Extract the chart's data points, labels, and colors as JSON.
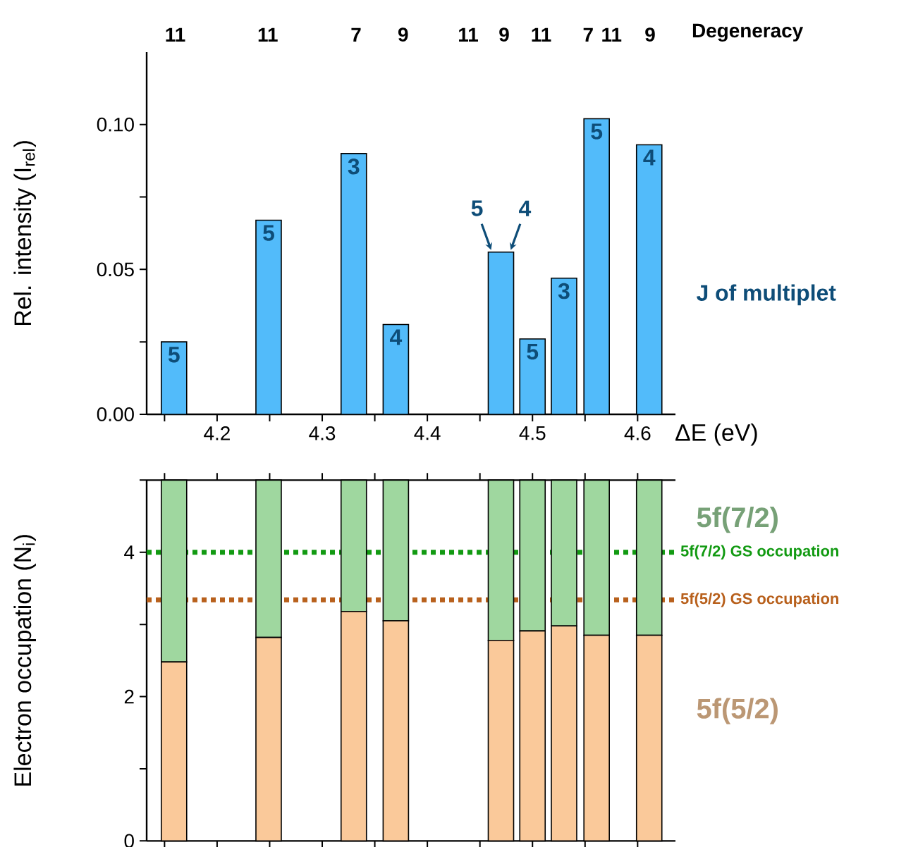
{
  "chart_data": [
    {
      "type": "bar",
      "ylabel": "Rel. intensity (I$_{rel}$)",
      "xlabel": "ΔE (eV)",
      "x": [
        4.159,
        4.249,
        4.33,
        4.37,
        4.47,
        4.5,
        4.53,
        4.561,
        4.611
      ],
      "values": [
        0.025,
        0.067,
        0.09,
        0.031,
        0.056,
        0.026,
        0.047,
        0.102,
        0.093
      ],
      "color": "#52bbfa",
      "xlim": [
        4.133,
        4.636
      ],
      "xticks": [
        {
          "value": 4.15,
          "label": null
        },
        4.2,
        {
          "value": 4.25,
          "label": null
        },
        4.3,
        {
          "value": 4.35,
          "label": null
        },
        4.4,
        {
          "value": 4.45,
          "label": null
        },
        4.5,
        {
          "value": 4.55,
          "label": null
        },
        4.6
      ],
      "ylim": [
        0,
        0.125
      ],
      "yticks": [
        {
          "value": 0,
          "label": "0.00"
        },
        {
          "value": 0.025,
          "label": null
        },
        0.05,
        {
          "value": 0.075,
          "label": null
        },
        {
          "value": 0.1,
          "label": "0.10"
        }
      ],
      "annotations": [
        "11",
        "11",
        "7",
        "9",
        "11",
        "9",
        "11",
        "7",
        "11",
        "9",
        "Degeneracy",
        {
          "text": "5",
          "x": 4.159,
          "y": 0.025
        },
        {
          "text": "5",
          "x": 4.249,
          "y": 0.067
        },
        {
          "text": "3",
          "x": 4.33,
          "y": 0.09
        },
        {
          "text": "4",
          "x": 4.37,
          "y": 0.031
        },
        {
          "text": "5",
          "x": 4.462,
          "y": 0.056
        },
        {
          "text": "4",
          "x": 4.478,
          "y": 0.056
        },
        {
          "text": "5",
          "x": 4.5,
          "y": 0.026
        },
        {
          "text": "3",
          "x": 4.53,
          "y": 0.047
        },
        {
          "text": "5",
          "x": 4.561,
          "y": 0.102
        },
        {
          "text": "4",
          "x": 4.611,
          "y": 0.093
        },
        "J of multiplet"
      ]
    },
    {
      "type": "bar",
      "stacked": true,
      "ylabel": "Electron occupation (N$_{i}$)",
      "x": [
        4.159,
        4.249,
        4.33,
        4.37,
        4.47,
        4.5,
        4.53,
        4.561,
        4.611
      ],
      "series": [
        {
          "name": "5f(5/2)",
          "color": "#fac99a",
          "values": [
            2.48,
            2.82,
            3.18,
            3.05,
            2.78,
            2.91,
            2.98,
            2.85,
            2.85
          ]
        },
        {
          "name": "5f(7/2)",
          "color": "#9fd79f",
          "values": [
            2.52,
            2.18,
            1.82,
            1.95,
            2.22,
            2.09,
            2.02,
            2.15,
            2.15
          ]
        }
      ],
      "xlim": [
        4.133,
        4.636
      ],
      "xticks": [
        {
          "value": 4.15,
          "label": null
        },
        4.2,
        {
          "value": 4.25,
          "label": null
        },
        4.3,
        {
          "value": 4.35,
          "label": null
        },
        4.4,
        {
          "value": 4.45,
          "label": null
        },
        4.5,
        {
          "value": 4.55,
          "label": null
        },
        4.6
      ],
      "ylim": [
        0,
        5
      ],
      "yticks": [
        0,
        {
          "value": 1,
          "label": null
        },
        2,
        {
          "value": 3,
          "label": null
        },
        4,
        {
          "value": 5,
          "label": null
        }
      ],
      "tick_labels": "y",
      "ref_lines": [
        {
          "axis": "y",
          "value": 4,
          "label": "5f(7/2) GS occupation",
          "color": "#129a12",
          "line_style": "dotted"
        },
        {
          "axis": "y",
          "value": 3.34,
          "label": "5f(5/2) GS occupation",
          "color": "#b8601c",
          "line_style": "dotted"
        }
      ]
    }
  ]
}
